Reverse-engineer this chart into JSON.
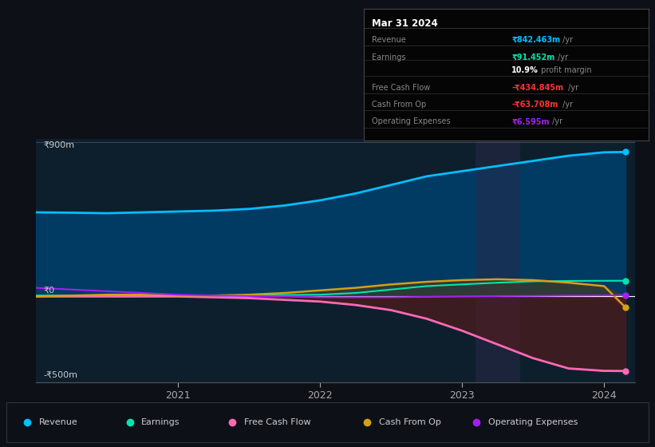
{
  "background_color": "#0d1117",
  "plot_bg_color": "#0d1f2d",
  "ylabel_900": "₹900m",
  "ylabel_0": "₹0",
  "ylabel_neg500": "-₹500m",
  "x_labels": [
    "2021",
    "2022",
    "2023",
    "2024"
  ],
  "legend": [
    "Revenue",
    "Earnings",
    "Free Cash Flow",
    "Cash From Op",
    "Operating Expenses"
  ],
  "legend_colors": [
    "#00bfff",
    "#00e5b0",
    "#ff69b4",
    "#d4a017",
    "#a020f0"
  ],
  "series": {
    "x": [
      2020.0,
      2020.25,
      2020.5,
      2020.75,
      2021.0,
      2021.25,
      2021.5,
      2021.75,
      2022.0,
      2022.25,
      2022.5,
      2022.75,
      2023.0,
      2023.25,
      2023.5,
      2023.75,
      2024.0,
      2024.15
    ],
    "revenue": [
      490,
      488,
      485,
      490,
      495,
      500,
      510,
      530,
      560,
      600,
      650,
      700,
      730,
      760,
      790,
      820,
      840,
      842
    ],
    "earnings": [
      5,
      5,
      5,
      5,
      5,
      5,
      6,
      8,
      10,
      20,
      40,
      60,
      70,
      80,
      88,
      90,
      91,
      91.5
    ],
    "fcf": [
      0,
      0,
      0,
      0,
      0,
      -5,
      -10,
      -20,
      -30,
      -50,
      -80,
      -130,
      -200,
      -280,
      -360,
      -420,
      -434,
      -434.8
    ],
    "cashfromop": [
      0,
      5,
      10,
      10,
      5,
      5,
      10,
      20,
      35,
      50,
      70,
      85,
      95,
      100,
      95,
      80,
      60,
      -63.7
    ],
    "opex": [
      50,
      40,
      30,
      20,
      10,
      5,
      2,
      0,
      -5,
      -5,
      -5,
      -3,
      0,
      2,
      3,
      5,
      6,
      6.6
    ]
  }
}
